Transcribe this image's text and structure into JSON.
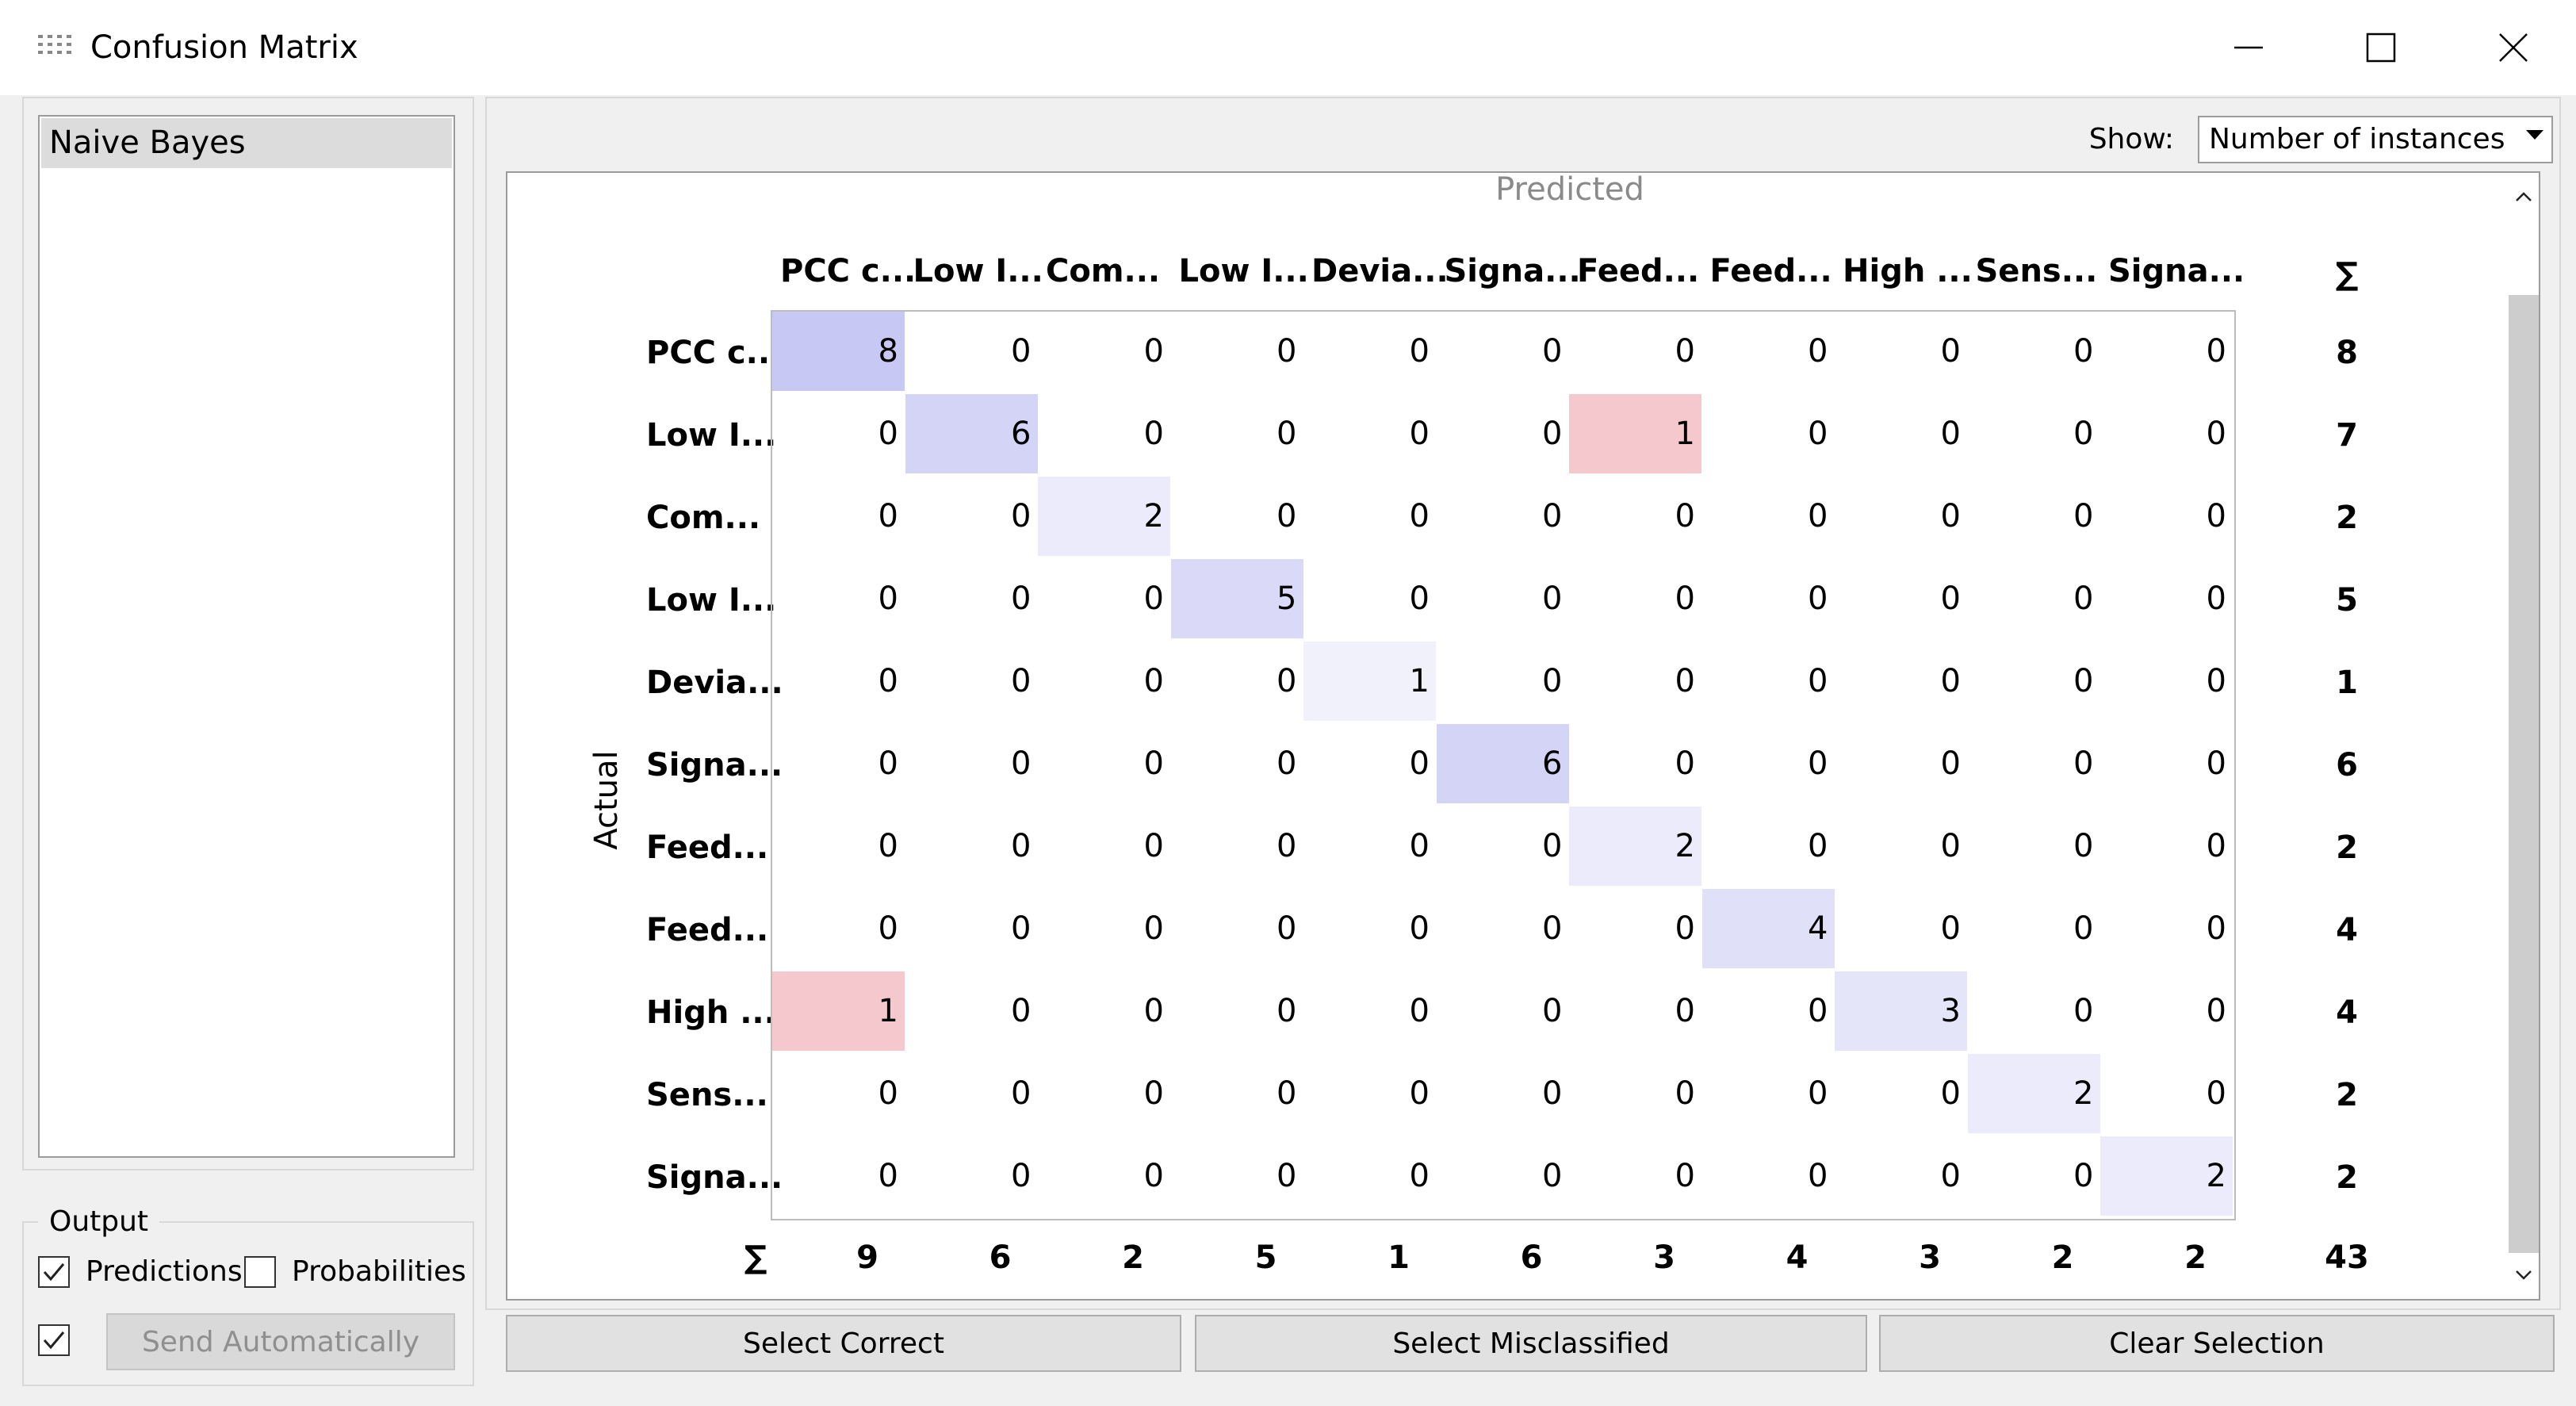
{
  "window": {
    "title": "Confusion Matrix"
  },
  "learners": {
    "items": [
      "Naive Bayes"
    ],
    "selected": 0
  },
  "output": {
    "title": "Output",
    "predictions": {
      "label": "Predictions",
      "checked": true
    },
    "probabilities": {
      "label": "Probabilities",
      "checked": false
    },
    "auto_send": {
      "checked": true
    },
    "send_button": "Send Automatically"
  },
  "show": {
    "label": "Show:",
    "value": "Number of instances"
  },
  "matrix": {
    "predicted_label": "Predicted",
    "actual_label": "Actual",
    "sum_symbol": "∑",
    "columns": [
      "PCC c...",
      "Low I...",
      "Com...",
      "Low I...",
      "Devia...",
      "Signa...",
      "Feed...",
      "Feed...",
      "High ...",
      "Sens...",
      "Signa..."
    ],
    "rows": [
      "PCC c...",
      "Low I...",
      "Com...",
      "Low I...",
      "Devia...",
      "Signa...",
      "Feed...",
      "Feed...",
      "High ...",
      "Sens...",
      "Signa..."
    ],
    "values": [
      [
        8,
        0,
        0,
        0,
        0,
        0,
        0,
        0,
        0,
        0,
        0
      ],
      [
        0,
        6,
        0,
        0,
        0,
        0,
        1,
        0,
        0,
        0,
        0
      ],
      [
        0,
        0,
        2,
        0,
        0,
        0,
        0,
        0,
        0,
        0,
        0
      ],
      [
        0,
        0,
        0,
        5,
        0,
        0,
        0,
        0,
        0,
        0,
        0
      ],
      [
        0,
        0,
        0,
        0,
        1,
        0,
        0,
        0,
        0,
        0,
        0
      ],
      [
        0,
        0,
        0,
        0,
        0,
        6,
        0,
        0,
        0,
        0,
        0
      ],
      [
        0,
        0,
        0,
        0,
        0,
        0,
        2,
        0,
        0,
        0,
        0
      ],
      [
        0,
        0,
        0,
        0,
        0,
        0,
        0,
        4,
        0,
        0,
        0
      ],
      [
        1,
        0,
        0,
        0,
        0,
        0,
        0,
        0,
        3,
        0,
        0
      ],
      [
        0,
        0,
        0,
        0,
        0,
        0,
        0,
        0,
        0,
        2,
        0
      ],
      [
        0,
        0,
        0,
        0,
        0,
        0,
        0,
        0,
        0,
        0,
        2
      ]
    ],
    "row_sums": [
      8,
      7,
      2,
      5,
      1,
      6,
      2,
      4,
      4,
      2,
      2
    ],
    "col_sums": [
      9,
      6,
      2,
      5,
      1,
      6,
      3,
      4,
      3,
      2,
      2
    ],
    "total": 43,
    "colors": {
      "correct": "#c8c8f4",
      "misclassified": "#f4c8cc"
    }
  },
  "buttons": {
    "select_correct": "Select Correct",
    "select_misclassified": "Select Misclassified",
    "clear_selection": "Clear Selection"
  }
}
